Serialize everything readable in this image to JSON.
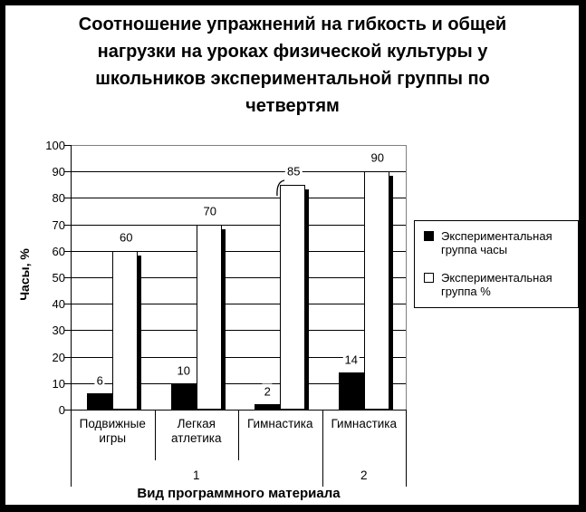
{
  "title": "Соотношение упражнений на гибкость и общей нагрузки на уроках физической культуры у школьников экспериментальной группы по четвертям",
  "chart_data": {
    "type": "bar",
    "title": "Соотношение упражнений на гибкость и общей нагрузки на уроках физической культуры у школьников экспериментальной группы по четвертям",
    "ylabel": "Часы, %",
    "xlabel": "Вид программного материала",
    "ylim": [
      0,
      100
    ],
    "ytick_step": 10,
    "grid": true,
    "legend_position": "right",
    "bar_value_labels_shown": true,
    "categories": [
      "Подвижные игры",
      "Легкая атлетика",
      "Гимнастика",
      "Гимнастика"
    ],
    "group_axis": [
      {
        "label": "1",
        "categories_spanned": 3
      },
      {
        "label": "2",
        "categories_spanned": 1
      }
    ],
    "series": [
      {
        "name": "Экспериментальная группа часы",
        "fill": "#000000",
        "values": [
          6,
          10,
          2,
          14
        ]
      },
      {
        "name": "Экспериментальная группа %",
        "fill": "#ffffff",
        "values": [
          60,
          70,
          85,
          90
        ]
      }
    ]
  },
  "colors": {
    "background": "#ffffff",
    "frame": "#000000",
    "text": "#000000",
    "gridline": "#000000",
    "plot_border": "#808080",
    "bar_series_1": "#000000",
    "bar_series_2": "#ffffff"
  }
}
